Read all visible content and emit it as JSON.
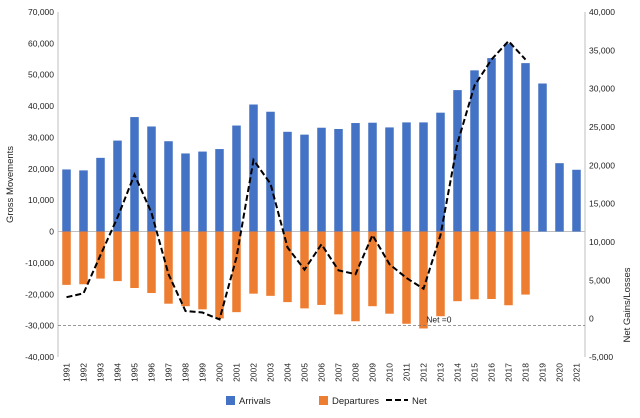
{
  "chart_data": {
    "type": "bar",
    "title": "",
    "xlabel": "",
    "ylabel": "Gross Movements",
    "y2label": "Net Gains/Losses",
    "ylim": [
      -40000,
      70000
    ],
    "y2lim": [
      -5000,
      40000
    ],
    "yticks": [
      "70,000",
      "60,000",
      "50,000",
      "40,000",
      "30,000",
      "20,000",
      "10,000",
      "0",
      "-10,000",
      "-20,000",
      "-30,000",
      "-40,000"
    ],
    "y2ticks": [
      "40,000",
      "35,000",
      "30,000",
      "25,000",
      "20,000",
      "15,000",
      "10,000",
      "5,000",
      "0",
      "-5,000"
    ],
    "categories": [
      "1991",
      "1992",
      "1993",
      "1994",
      "1995",
      "1996",
      "1997",
      "1998",
      "1999",
      "2000",
      "2001",
      "2002",
      "2003",
      "2004",
      "2005",
      "2006",
      "2007",
      "2008",
      "2009",
      "2010",
      "2011",
      "2012",
      "2013",
      "2014",
      "2015",
      "2016",
      "2017",
      "2018",
      "2019",
      "2020",
      "2021"
    ],
    "series": [
      {
        "name": "Arrivals",
        "type": "bar",
        "axis": "left",
        "color": "#4472C4",
        "values": [
          19800,
          19500,
          23500,
          29000,
          36500,
          33500,
          28800,
          24900,
          25500,
          26300,
          33800,
          40500,
          38200,
          31800,
          30900,
          33100,
          32700,
          34600,
          34700,
          33200,
          34800,
          34800,
          37900,
          45100,
          51400,
          55300,
          59900,
          53700,
          47200,
          21800,
          19700
        ]
      },
      {
        "name": "Departures",
        "type": "bar",
        "axis": "left",
        "color": "#ED7D31",
        "values": [
          -17000,
          -16800,
          -15000,
          -15800,
          -18000,
          -19600,
          -23000,
          -23800,
          -24800,
          -27700,
          -25700,
          -19800,
          -20500,
          -22500,
          -24500,
          -23400,
          -26400,
          -28600,
          -23800,
          -26200,
          -29400,
          -30900,
          -27000,
          -22200,
          -21600,
          -21500,
          -23500,
          -20100,
          0,
          0,
          0
        ]
      },
      {
        "name": "Net",
        "type": "line",
        "axis": "right",
        "color": "#000000",
        "dash": true,
        "values": [
          2800,
          3300,
          8300,
          13200,
          18800,
          13800,
          5800,
          1000,
          800,
          -100,
          8000,
          20700,
          17600,
          9300,
          6400,
          9700,
          6300,
          5800,
          10900,
          7100,
          5300,
          3900,
          10900,
          22900,
          30400,
          33800,
          36200,
          33800,
          null,
          null,
          null
        ]
      }
    ],
    "reference_line": {
      "value": -30000,
      "axis": "left",
      "label": "Net =0"
    },
    "legend": {
      "position": "bottom",
      "entries": [
        "Arrivals",
        "Departures",
        "Net"
      ]
    }
  }
}
